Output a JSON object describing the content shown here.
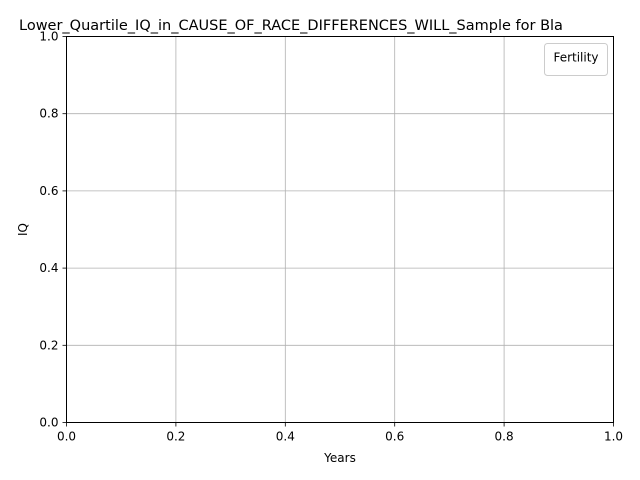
{
  "chart_data": {
    "type": "line",
    "title": "Lower_Quartile_IQ_in_CAUSE_OF_RACE_DIFFERENCES_WILL_Sample for Bla",
    "xlabel": "Years",
    "ylabel": "IQ",
    "xlim": [
      0.0,
      1.0
    ],
    "ylim": [
      0.0,
      1.0
    ],
    "x_ticks": [
      "0.0",
      "0.2",
      "0.4",
      "0.6",
      "0.8",
      "1.0"
    ],
    "y_ticks": [
      "0.0",
      "0.2",
      "0.4",
      "0.6",
      "0.8",
      "1.0"
    ],
    "grid": true,
    "legend": {
      "title": "Fertility",
      "placement": "top-right",
      "entries": []
    },
    "series": []
  }
}
